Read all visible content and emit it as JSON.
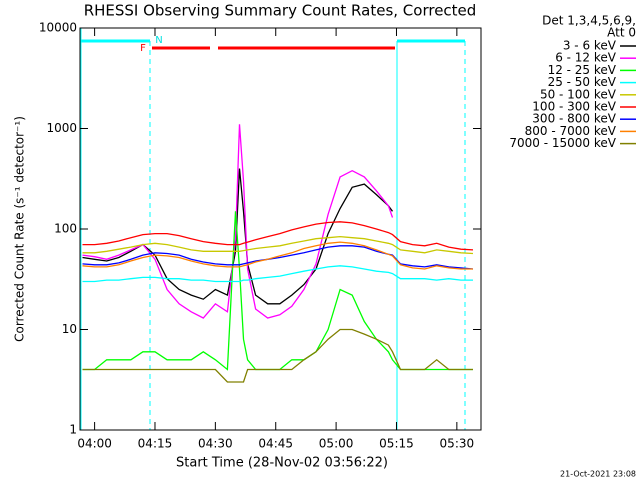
{
  "chart_data": {
    "type": "line",
    "title": "RHESSI Observing Summary Count Rates, Corrected",
    "xlabel": "Start Time (28-Nov-02 03:56:22)",
    "ylabel": "Corrected Count Rate (s⁻¹ detector⁻¹)",
    "legend_header": [
      "Det 1,3,4,5,6,9,",
      "Att 0"
    ],
    "footer": "21-Oct-2021 23:08",
    "annotations": [
      {
        "text": "F",
        "color": "#ff0000"
      },
      {
        "text": "N",
        "color": "#00e0e0"
      }
    ],
    "log_y": true,
    "ylim": [
      1,
      10000
    ],
    "yticks": [
      1,
      10,
      100,
      1000,
      10000
    ],
    "xlim": [
      -3.63,
      96
    ],
    "xticks": [
      {
        "value": 0,
        "label": "04:00"
      },
      {
        "value": 15,
        "label": "04:15"
      },
      {
        "value": 30,
        "label": "04:30"
      },
      {
        "value": 45,
        "label": "04:45"
      },
      {
        "value": 60,
        "label": "05:00"
      },
      {
        "value": 75,
        "label": "05:15"
      },
      {
        "value": 90,
        "label": "05:30"
      }
    ],
    "x": [
      -3,
      0,
      3,
      6,
      9,
      12,
      15,
      18,
      21,
      24,
      27,
      30,
      33,
      35,
      36,
      37,
      38,
      40,
      43,
      46,
      49,
      52,
      55,
      58,
      61,
      64,
      67,
      70,
      73,
      74,
      76,
      79,
      82,
      85,
      88,
      91,
      94
    ],
    "series": [
      {
        "name": "3 - 6 keV",
        "color": "#000000",
        "values": [
          52,
          50,
          48,
          52,
          60,
          70,
          55,
          32,
          25,
          22,
          20,
          25,
          22,
          60,
          400,
          150,
          45,
          22,
          18,
          18,
          22,
          28,
          40,
          90,
          160,
          260,
          280,
          220,
          170,
          150,
          null,
          null,
          null,
          null,
          null,
          null,
          null
        ]
      },
      {
        "name": "6 - 12 keV",
        "color": "#ff00ff",
        "values": [
          55,
          53,
          50,
          55,
          62,
          70,
          50,
          25,
          18,
          15,
          13,
          18,
          15,
          80,
          1100,
          300,
          40,
          16,
          13,
          14,
          17,
          25,
          45,
          140,
          330,
          380,
          330,
          240,
          170,
          130,
          null,
          null,
          null,
          null,
          null,
          null,
          null
        ]
      },
      {
        "name": "12 - 25 keV",
        "color": "#00ff00",
        "values": [
          4,
          4,
          5,
          5,
          5,
          6,
          6,
          5,
          5,
          5,
          6,
          5,
          4,
          150,
          40,
          8,
          5,
          4,
          4,
          4,
          5,
          5,
          6,
          10,
          25,
          22,
          12,
          8,
          6,
          5,
          4,
          4,
          4,
          4,
          4,
          4,
          4
        ]
      },
      {
        "name": "25 - 50 keV",
        "color": "#00ffff",
        "values": [
          30,
          30,
          31,
          31,
          32,
          33,
          33,
          32,
          32,
          31,
          31,
          30,
          30,
          30,
          30,
          31,
          31,
          32,
          33,
          34,
          36,
          38,
          40,
          42,
          43,
          42,
          40,
          38,
          37,
          36,
          32,
          32,
          32,
          31,
          32,
          31,
          31
        ]
      },
      {
        "name": "50 - 100 keV",
        "color": "#c8c800",
        "values": [
          58,
          58,
          60,
          63,
          66,
          70,
          72,
          70,
          66,
          62,
          60,
          60,
          60,
          60,
          60,
          61,
          62,
          64,
          66,
          68,
          72,
          76,
          80,
          82,
          84,
          82,
          80,
          76,
          72,
          70,
          62,
          60,
          58,
          62,
          60,
          58,
          57
        ]
      },
      {
        "name": "100 - 300 keV",
        "color": "#ff0000",
        "values": [
          70,
          70,
          72,
          76,
          82,
          88,
          90,
          90,
          86,
          80,
          75,
          72,
          70,
          70,
          70,
          72,
          74,
          78,
          84,
          90,
          98,
          105,
          112,
          116,
          118,
          115,
          108,
          100,
          92,
          88,
          75,
          70,
          68,
          72,
          66,
          63,
          62
        ]
      },
      {
        "name": "300 - 800 keV",
        "color": "#0000ff",
        "values": [
          45,
          44,
          44,
          46,
          50,
          55,
          58,
          57,
          55,
          50,
          47,
          45,
          44,
          44,
          44,
          45,
          46,
          48,
          50,
          52,
          55,
          58,
          62,
          66,
          68,
          68,
          66,
          60,
          56,
          55,
          45,
          43,
          42,
          44,
          42,
          41,
          40
        ]
      },
      {
        "name": "800 - 7000 keV",
        "color": "#ff8000",
        "values": [
          43,
          42,
          42,
          44,
          48,
          52,
          55,
          54,
          52,
          48,
          45,
          43,
          42,
          42,
          42,
          43,
          44,
          47,
          50,
          54,
          58,
          64,
          68,
          72,
          74,
          72,
          68,
          62,
          56,
          54,
          44,
          41,
          40,
          43,
          41,
          40,
          40
        ]
      },
      {
        "name": "7000 - 15000 keV",
        "color": "#808000",
        "values": [
          4,
          4,
          4,
          4,
          4,
          4,
          4,
          4,
          4,
          4,
          4,
          4,
          3,
          3,
          3,
          3,
          4,
          4,
          4,
          4,
          4,
          5,
          6,
          8,
          10,
          10,
          9,
          8,
          7,
          6,
          4,
          4,
          4,
          5,
          4,
          4,
          4
        ]
      }
    ]
  }
}
